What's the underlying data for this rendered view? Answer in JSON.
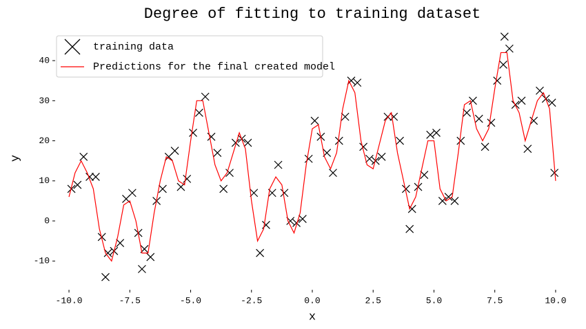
{
  "chart_data": {
    "type": "scatter",
    "title": "Degree of fitting to training dataset",
    "x_label": "x",
    "y_label": "y",
    "legend": "upper left",
    "grid": false,
    "xlim": [
      -10.54,
      10.54
    ],
    "ylim": [
      -17,
      47.4
    ],
    "xticks": [
      {
        "value": -10,
        "label": "-10.0"
      },
      -7.5,
      {
        "value": -5,
        "label": "-5.0"
      },
      -2.5,
      {
        "value": 0,
        "label": "0.0"
      },
      2.5,
      {
        "value": 5,
        "label": "5.0"
      },
      7.5,
      {
        "value": 10,
        "label": "10.0"
      }
    ],
    "yticks": [
      -10,
      0,
      10,
      20,
      30,
      40
    ],
    "series": [
      {
        "name": "training data",
        "color": "#000000",
        "mode": "markers",
        "x": [
          -9.9,
          -9.65,
          -9.4,
          -9.15,
          -8.9,
          -8.65,
          -8.4,
          -8.15,
          -7.9,
          -7.65,
          -7.4,
          -7.15,
          -6.9,
          -6.65,
          -6.4,
          -6.15,
          -5.9,
          -5.65,
          -5.4,
          -5.15,
          -4.9,
          -4.65,
          -4.4,
          -4.15,
          -3.9,
          -3.65,
          -3.4,
          -3.15,
          -2.9,
          -2.65,
          -2.4,
          -2.15,
          -1.9,
          -1.65,
          -1.4,
          -1.15,
          -0.9,
          -0.65,
          -0.4,
          -0.15,
          0.1,
          0.35,
          0.6,
          0.85,
          1.1,
          1.35,
          1.6,
          1.85,
          2.1,
          2.35,
          2.6,
          2.85,
          3.1,
          3.35,
          3.6,
          3.85,
          4.1,
          4.35,
          4.6,
          4.85,
          5.1,
          5.35,
          5.6,
          5.85,
          6.1,
          6.35,
          6.6,
          6.85,
          7.1,
          7.35,
          7.6,
          7.85,
          8.1,
          8.35,
          8.6,
          8.85,
          9.1,
          9.35,
          9.6,
          9.85,
          9.95,
          7.9,
          -8.5,
          4,
          -7
        ],
        "values": [
          8,
          9,
          16,
          11,
          11,
          -4,
          -8,
          -7.5,
          -5.5,
          5.5,
          7,
          -3,
          -7,
          -9,
          5,
          8,
          16,
          17.5,
          8.5,
          10.5,
          22,
          27,
          31,
          21,
          17,
          8,
          12,
          19.5,
          20.5,
          19.5,
          7,
          -8,
          -1,
          7,
          14,
          7,
          0,
          -0.5,
          0.5,
          15.5,
          25,
          21,
          17,
          12,
          20,
          26,
          35,
          34.5,
          18.5,
          15.5,
          15,
          16,
          26,
          26,
          20,
          8,
          3,
          8.5,
          11.5,
          21.5,
          22,
          5,
          6,
          5,
          20,
          27,
          30,
          25.5,
          18.5,
          24.5,
          35,
          39,
          43,
          29,
          30,
          18,
          25,
          32.5,
          30.5,
          29.5,
          12,
          46,
          -14,
          -2,
          -12
        ]
      },
      {
        "name": "Predictions for the final created model",
        "color": "#ff0000",
        "mode": "line",
        "x": [
          -10,
          -9.75,
          -9.5,
          -9.25,
          -9,
          -8.75,
          -8.5,
          -8.25,
          -8,
          -7.75,
          -7.5,
          -7.25,
          -7,
          -6.75,
          -6.5,
          -6.25,
          -6,
          -5.75,
          -5.5,
          -5.25,
          -5,
          -4.75,
          -4.5,
          -4.25,
          -4,
          -3.75,
          -3.5,
          -3.25,
          -3,
          -2.75,
          -2.5,
          -2.25,
          -2,
          -1.75,
          -1.5,
          -1.25,
          -1,
          -0.75,
          -0.5,
          -0.25,
          0,
          0.25,
          0.5,
          0.75,
          1,
          1.25,
          1.5,
          1.75,
          2,
          2.25,
          2.5,
          2.75,
          3,
          3.25,
          3.5,
          3.75,
          4,
          4.25,
          4.5,
          4.75,
          5,
          5.25,
          5.5,
          5.75,
          6,
          6.25,
          6.5,
          6.75,
          7,
          7.25,
          7.5,
          7.75,
          8,
          8.25,
          8.5,
          8.75,
          9,
          9.25,
          9.5,
          9.75,
          10
        ],
        "values": [
          6,
          12,
          15,
          12,
          8,
          -2,
          -8,
          -10,
          -4,
          4,
          5,
          0,
          -8,
          -8,
          2,
          10,
          16,
          15,
          10,
          9,
          20,
          30,
          30,
          22,
          14,
          10,
          12,
          17,
          22,
          18,
          5,
          -5,
          -2,
          8,
          11,
          9,
          0,
          -3,
          2,
          14,
          23,
          24,
          16,
          13,
          17,
          28,
          35,
          32,
          20,
          14,
          13,
          19,
          25,
          27,
          17,
          10,
          3,
          6,
          13,
          20,
          20,
          8,
          5,
          6,
          17,
          29,
          30,
          23,
          20,
          23,
          33,
          42,
          42,
          30,
          27,
          20,
          25,
          30,
          32,
          28,
          10
        ]
      }
    ]
  }
}
